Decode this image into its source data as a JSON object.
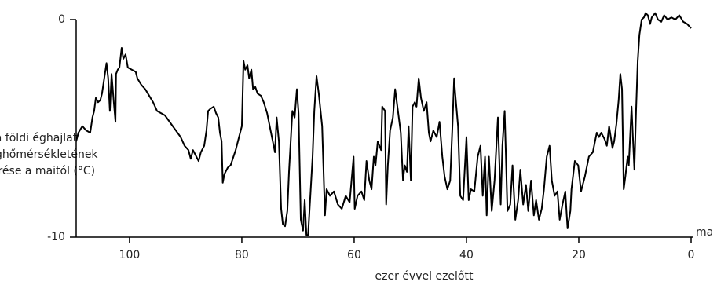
{
  "chart_data": {
    "type": "line",
    "ylabel": [
      "a földi éghajlat",
      "átlaghőmérsékletének",
      "eltérése a maitól (°C)"
    ],
    "xlabel": "ezer évvel ezelőtt",
    "x_end_label": "ma",
    "xlim": [
      109.5,
      0
    ],
    "xticks": [
      100,
      80,
      60,
      40,
      20,
      0
    ],
    "ylim": [
      -10,
      0
    ],
    "yticks": [
      0,
      -10
    ],
    "series": [
      {
        "color": "#000000",
        "x": [
          109.5,
          109.1,
          108.4,
          107.7,
          107.0,
          106.6,
          106.3,
          106.0,
          105.6,
          105.2,
          104.9,
          104.5,
          104.1,
          103.8,
          103.5,
          103.2,
          102.8,
          102.5,
          102.4,
          102.1,
          101.8,
          101.4,
          101.1,
          100.7,
          100.3,
          99.6,
          98.9,
          98.6,
          97.9,
          97.2,
          96.5,
          95.8,
          95.1,
          93.7,
          92.3,
          90.9,
          90.2,
          89.5,
          89.1,
          88.7,
          88.1,
          87.7,
          87.3,
          86.7,
          86.3,
          86.0,
          85.6,
          85.0,
          84.6,
          84.2,
          83.9,
          83.6,
          83.4,
          83.1,
          82.5,
          82.0,
          81.1,
          80.4,
          80.0,
          79.7,
          79.4,
          79.0,
          78.7,
          78.3,
          78.0,
          77.6,
          77.2,
          76.6,
          76.1,
          75.5,
          74.8,
          74.1,
          73.8,
          73.4,
          73.0,
          72.7,
          72.3,
          71.9,
          71.6,
          71.3,
          71.0,
          70.6,
          70.2,
          69.9,
          69.5,
          69.1,
          68.8,
          68.5,
          68.2,
          67.8,
          67.4,
          67.1,
          66.7,
          66.3,
          65.7,
          65.2,
          64.9,
          64.3,
          63.6,
          62.9,
          62.2,
          61.5,
          60.8,
          60.1,
          59.9,
          59.4,
          58.7,
          58.2,
          57.8,
          57.3,
          56.9,
          56.5,
          56.2,
          55.8,
          55.2,
          55.0,
          54.5,
          54.3,
          54.0,
          53.6,
          53.1,
          52.7,
          52.3,
          51.7,
          51.3,
          51.0,
          50.6,
          50.3,
          49.9,
          49.6,
          49.2,
          48.9,
          48.5,
          48.1,
          47.6,
          47.1,
          46.7,
          46.4,
          45.9,
          45.3,
          44.8,
          44.3,
          43.9,
          43.4,
          42.9,
          42.5,
          42.2,
          42.0,
          41.5,
          41.1,
          40.6,
          40.0,
          39.6,
          39.2,
          38.6,
          38.0,
          37.5,
          37.1,
          36.7,
          36.4,
          36.0,
          35.5,
          35.0,
          34.4,
          33.9,
          33.6,
          33.2,
          32.7,
          32.2,
          31.8,
          31.3,
          30.8,
          30.4,
          29.9,
          29.4,
          29.0,
          28.5,
          28.0,
          27.6,
          27.1,
          26.6,
          26.2,
          25.7,
          25.2,
          24.8,
          24.3,
          23.8,
          23.4,
          22.9,
          22.4,
          22.0,
          21.5,
          21.3,
          20.7,
          20.1,
          19.6,
          18.9,
          18.2,
          17.5,
          16.8,
          16.4,
          16.0,
          15.4,
          15.0,
          14.6,
          14.0,
          13.7,
          13.3,
          12.9,
          12.6,
          12.3,
          12.0,
          11.7,
          11.3,
          11.1,
          10.6,
          10.4,
          10.1,
          9.8,
          9.5,
          9.2,
          8.8,
          8.4,
          8.1,
          7.7,
          7.3,
          7.0,
          6.4,
          5.9,
          5.3,
          4.8,
          4.2,
          3.5,
          2.8,
          2.1,
          1.4,
          0.7,
          0
        ],
        "values": [
          -5.6,
          -5.2,
          -4.9,
          -5.1,
          -5.2,
          -4.5,
          -4.2,
          -3.6,
          -3.8,
          -3.7,
          -3.4,
          -2.7,
          -2.0,
          -2.7,
          -4.2,
          -2.5,
          -3.8,
          -4.7,
          -2.5,
          -2.3,
          -2.2,
          -1.3,
          -1.8,
          -1.6,
          -2.2,
          -2.3,
          -2.4,
          -2.7,
          -3.0,
          -3.2,
          -3.5,
          -3.8,
          -4.2,
          -4.4,
          -4.9,
          -5.4,
          -5.8,
          -6.0,
          -6.4,
          -6.0,
          -6.3,
          -6.5,
          -6.1,
          -5.8,
          -5.1,
          -4.2,
          -4.1,
          -4.0,
          -4.3,
          -4.5,
          -5.2,
          -5.6,
          -7.5,
          -7.1,
          -6.8,
          -6.7,
          -6.0,
          -5.3,
          -4.9,
          -1.9,
          -2.3,
          -2.1,
          -2.7,
          -2.3,
          -3.2,
          -3.1,
          -3.4,
          -3.5,
          -3.8,
          -4.3,
          -5.2,
          -6.1,
          -4.5,
          -5.6,
          -8.7,
          -9.4,
          -9.5,
          -8.8,
          -7.0,
          -5.6,
          -4.2,
          -4.5,
          -3.2,
          -4.3,
          -9.2,
          -9.7,
          -8.3,
          -9.9,
          -9.9,
          -8.1,
          -6.3,
          -4.2,
          -2.6,
          -3.4,
          -4.9,
          -9.0,
          -7.8,
          -8.1,
          -7.9,
          -8.5,
          -8.7,
          -8.1,
          -8.4,
          -6.3,
          -8.7,
          -8.1,
          -7.9,
          -8.3,
          -6.5,
          -7.4,
          -7.8,
          -6.3,
          -6.7,
          -5.6,
          -6.0,
          -4.0,
          -4.2,
          -8.5,
          -6.7,
          -5.1,
          -4.5,
          -3.2,
          -4.0,
          -5.2,
          -7.4,
          -6.7,
          -7.0,
          -4.9,
          -7.4,
          -4.0,
          -3.8,
          -4.0,
          -2.7,
          -3.6,
          -4.2,
          -3.8,
          -5.2,
          -5.6,
          -5.1,
          -5.4,
          -4.7,
          -6.3,
          -7.2,
          -7.8,
          -7.4,
          -4.9,
          -2.7,
          -3.4,
          -4.9,
          -8.1,
          -8.3,
          -5.4,
          -8.3,
          -7.8,
          -7.9,
          -6.3,
          -5.8,
          -8.1,
          -6.3,
          -9.0,
          -6.3,
          -8.8,
          -7.4,
          -4.5,
          -8.5,
          -5.8,
          -4.2,
          -8.8,
          -8.5,
          -6.7,
          -9.2,
          -8.3,
          -6.9,
          -8.5,
          -7.6,
          -8.8,
          -7.4,
          -9.0,
          -8.3,
          -9.2,
          -8.7,
          -7.8,
          -6.3,
          -5.8,
          -7.4,
          -8.1,
          -7.9,
          -9.2,
          -8.5,
          -7.9,
          -9.6,
          -8.8,
          -7.8,
          -6.5,
          -6.7,
          -7.9,
          -7.2,
          -6.3,
          -6.1,
          -5.2,
          -5.4,
          -5.2,
          -5.5,
          -5.8,
          -4.9,
          -5.9,
          -5.6,
          -4.8,
          -3.7,
          -2.5,
          -3.2,
          -7.8,
          -7.2,
          -6.3,
          -6.7,
          -4.0,
          -5.2,
          -6.9,
          -4.2,
          -1.9,
          -0.7,
          0,
          0.1,
          0.3,
          0.2,
          -0.2,
          0.1,
          0.3,
          0,
          -0.1,
          0.2,
          0,
          0.1,
          0,
          0.2,
          -0.1,
          -0.2,
          -0.4
        ]
      }
    ]
  }
}
